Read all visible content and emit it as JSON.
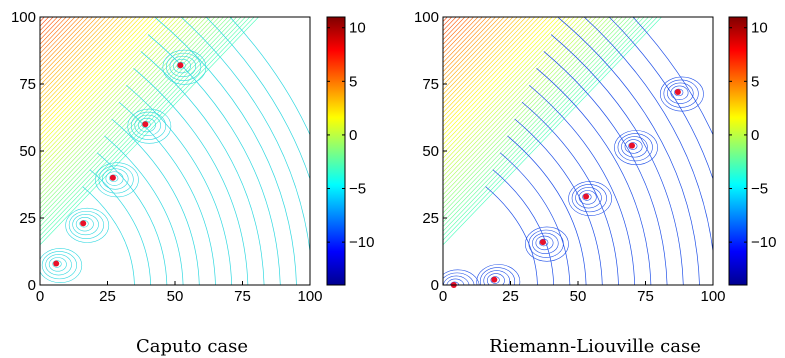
{
  "chart_data": [
    {
      "type": "contour",
      "title": "",
      "caption": "Caputo case",
      "xlabel": "",
      "ylabel": "",
      "xlim": [
        0,
        100
      ],
      "ylim": [
        0,
        100
      ],
      "xticks": [
        "0",
        "25",
        "50",
        "75",
        "100"
      ],
      "yticks": [
        "0",
        "25",
        "50",
        "75",
        "100"
      ],
      "colorbar": {
        "ticks": [
          "10",
          "5",
          "0",
          "−5",
          "−10"
        ],
        "values": [
          10,
          5,
          0,
          -5,
          -10
        ],
        "range": [
          -14,
          11
        ],
        "colormap": "jet"
      },
      "zeros": [
        [
          6,
          8
        ],
        [
          16,
          23
        ],
        [
          27,
          40
        ],
        [
          39,
          60
        ],
        [
          52,
          82
        ]
      ],
      "marker_color": "#e8102a",
      "far_field_color": "#30d8e0"
    },
    {
      "type": "contour",
      "title": "",
      "caption": "Riemann-Liouville case",
      "xlabel": "",
      "ylabel": "",
      "xlim": [
        0,
        100
      ],
      "ylim": [
        0,
        100
      ],
      "xticks": [
        "0",
        "25",
        "50",
        "75",
        "100"
      ],
      "yticks": [
        "0",
        "25",
        "50",
        "75",
        "100"
      ],
      "colorbar": {
        "ticks": [
          "10",
          "5",
          "0",
          "−5",
          "−10"
        ],
        "values": [
          10,
          5,
          0,
          -5,
          -10
        ],
        "range": [
          -14,
          11
        ],
        "colormap": "jet"
      },
      "zeros": [
        [
          4,
          0
        ],
        [
          19,
          2
        ],
        [
          37,
          16
        ],
        [
          53,
          33
        ],
        [
          70,
          52
        ],
        [
          87,
          72
        ]
      ],
      "marker_color": "#e8102a",
      "far_field_color": "#2050e8"
    }
  ]
}
